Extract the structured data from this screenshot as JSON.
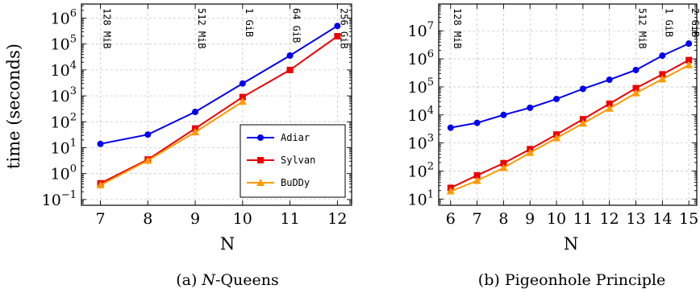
{
  "chart_data": [
    {
      "type": "line",
      "caption_prefix": "(a) ",
      "caption_italic": "N",
      "caption_suffix": "-Queens",
      "xlabel": "N",
      "ylabel": "time (seconds)",
      "scale_y": "log",
      "x": [
        7,
        8,
        9,
        10,
        11,
        12
      ],
      "xlim": [
        6.6,
        12.3
      ],
      "ylim": [
        0.06,
        3500000
      ],
      "y_tick_exponents": [
        -1,
        0,
        1,
        2,
        3,
        4,
        5,
        6
      ],
      "grid": true,
      "legend_position": "bottom-right",
      "memory_labels": [
        {
          "x": 7,
          "label": "128 MiB"
        },
        {
          "x": 9,
          "label": "512 MiB"
        },
        {
          "x": 10,
          "label": "1 GiB"
        },
        {
          "x": 11,
          "label": "64 GiB"
        },
        {
          "x": 12,
          "label": "256 GiB"
        }
      ],
      "series": [
        {
          "name": "Adiar",
          "color": "#0000ee",
          "marker": "circle",
          "values": [
            14,
            32,
            240,
            3000,
            36000,
            500000
          ]
        },
        {
          "name": "Sylvan",
          "color": "#ee0000",
          "marker": "square",
          "values": [
            0.42,
            3.5,
            55,
            900,
            10000,
            200000
          ]
        },
        {
          "name": "BuDDy",
          "color": "#ff9900",
          "marker": "triangle",
          "values": [
            0.36,
            3.2,
            40,
            600,
            null,
            null
          ]
        }
      ]
    },
    {
      "type": "line",
      "caption_prefix": "(b) ",
      "caption_italic": "",
      "caption_suffix": "Pigeonhole Principle",
      "xlabel": "N",
      "ylabel": "",
      "scale_y": "log",
      "x": [
        6,
        7,
        8,
        9,
        10,
        11,
        12,
        13,
        14,
        15
      ],
      "xlim": [
        5.55,
        15.3
      ],
      "ylim": [
        6,
        90000000
      ],
      "y_tick_exponents": [
        1,
        2,
        3,
        4,
        5,
        6,
        7
      ],
      "grid": true,
      "legend_position": "none",
      "memory_labels": [
        {
          "x": 6,
          "label": "128 MiB"
        },
        {
          "x": 13,
          "label": "512 MiB"
        },
        {
          "x": 14,
          "label": "1 GiB"
        },
        {
          "x": 15,
          "label": "2 GiB"
        }
      ],
      "series": [
        {
          "name": "Adiar",
          "color": "#0000ee",
          "marker": "circle",
          "values": [
            3500,
            5200,
            10000,
            18000,
            37000,
            85000,
            180000,
            400000,
            1300000,
            3500000
          ]
        },
        {
          "name": "Sylvan",
          "color": "#ee0000",
          "marker": "square",
          "values": [
            25,
            70,
            190,
            600,
            2000,
            7000,
            25000,
            90000,
            280000,
            900000
          ]
        },
        {
          "name": "BuDDy",
          "color": "#ff9900",
          "marker": "triangle",
          "values": [
            19,
            45,
            130,
            450,
            1500,
            5000,
            17000,
            60000,
            190000,
            600000
          ]
        }
      ]
    }
  ]
}
